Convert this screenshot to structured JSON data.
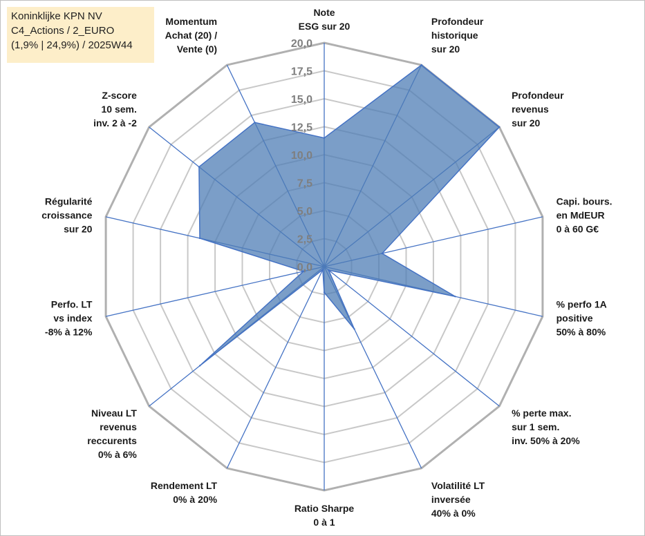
{
  "title_box": {
    "line1": "Koninklijke KPN NV",
    "line2": "C4_Actions / 2_EURO",
    "line3": "(1,9% | 24,9%) / 2025W44"
  },
  "colors": {
    "fill": "#4f7db5",
    "fill_opacity": 0.75,
    "outline": "#4472c4",
    "spoke": "#4472c4",
    "grid": "#c8c8c8",
    "outer_grid": "#b0b0b0",
    "title_bg": "#fdeec9"
  },
  "chart_data": {
    "type": "radar",
    "title": "",
    "scale": {
      "min": 0,
      "max": 20,
      "step": 2.5
    },
    "ticks": [
      "0,0",
      "2,5",
      "5,0",
      "7,5",
      "10,0",
      "12,5",
      "15,0",
      "17,5",
      "20,0"
    ],
    "categories": [
      [
        "Note",
        "ESG sur 20"
      ],
      [
        "Profondeur",
        "historique",
        "sur 20"
      ],
      [
        "Profondeur",
        "revenus",
        "sur 20"
      ],
      [
        "Capi. bours.",
        "en MdEUR",
        "0 à 60 G€"
      ],
      [
        "% perfo 1A",
        "positive",
        "50% à 80%"
      ],
      [
        "% perte max.",
        "sur 1 sem.",
        "inv. 50% à 20%"
      ],
      [
        "Volatilité LT",
        "inversée",
        "40% à 0%"
      ],
      [
        "Ratio Sharpe",
        "0 à 1"
      ],
      [
        "Rendement LT",
        "0% à 20%"
      ],
      [
        "Niveau LT",
        "revenus",
        "reccurents",
        "0% à 6%"
      ],
      [
        "Perfo. LT",
        "vs index",
        "-8% à 12%"
      ],
      [
        "Régularité",
        "croissance",
        "sur 20"
      ],
      [
        "Z-score",
        "10 sem.",
        "inv. 2 à -2"
      ],
      [
        "Momentum",
        "Achat (20) /",
        "Vente (0)"
      ]
    ],
    "series": [
      {
        "name": "Koninklijke KPN NV",
        "values": [
          11.5,
          20,
          20,
          5.3,
          12.0,
          0.5,
          6.2,
          2.3,
          0.3,
          14.2,
          1.9,
          11.4,
          14.3,
          14.3
        ]
      }
    ]
  }
}
